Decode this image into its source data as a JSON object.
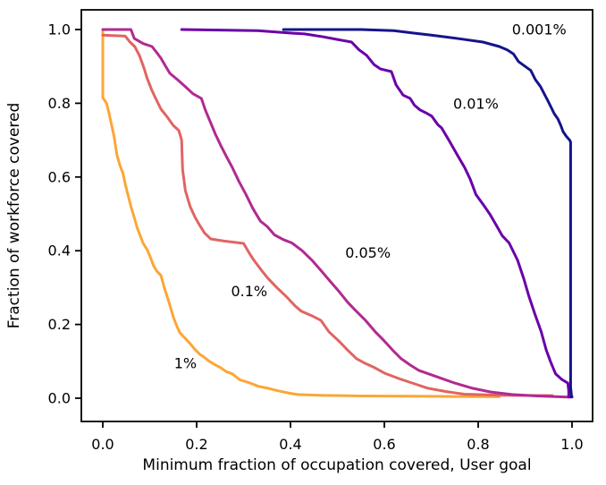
{
  "chart_data": {
    "type": "line",
    "title": "",
    "xlabel": "Minimum fraction of occupation covered, User goal",
    "ylabel": "Fraction of workforce covered",
    "xlim": [
      -0.05,
      1.05
    ],
    "ylim": [
      -0.05,
      1.05
    ],
    "grid": false,
    "legend_position": "inline-annotations",
    "x_ticks": [
      0.0,
      0.2,
      0.4,
      0.6,
      0.8,
      1.0
    ],
    "y_ticks": [
      0.0,
      0.2,
      0.4,
      0.6,
      0.8,
      1.0
    ],
    "x_tick_labels": [
      "0.0",
      "0.2",
      "0.4",
      "0.6",
      "0.8",
      "1.0"
    ],
    "y_tick_labels": [
      "0.0",
      "0.2",
      "0.4",
      "0.6",
      "0.8",
      "1.0"
    ],
    "series": [
      {
        "name": "1%",
        "color": "#fca636",
        "points": [
          [
            0,
            1
          ],
          [
            0,
            0.815
          ],
          [
            0.008,
            0.8
          ],
          [
            0.013,
            0.775
          ],
          [
            0.018,
            0.745
          ],
          [
            0.024,
            0.71
          ],
          [
            0.03,
            0.66
          ],
          [
            0.037,
            0.63
          ],
          [
            0.043,
            0.61
          ],
          [
            0.048,
            0.58
          ],
          [
            0.053,
            0.555
          ],
          [
            0.06,
            0.52
          ],
          [
            0.067,
            0.49
          ],
          [
            0.074,
            0.46
          ],
          [
            0.08,
            0.44
          ],
          [
            0.086,
            0.42
          ],
          [
            0.095,
            0.402
          ],
          [
            0.102,
            0.38
          ],
          [
            0.108,
            0.36
          ],
          [
            0.115,
            0.345
          ],
          [
            0.124,
            0.333
          ],
          [
            0.131,
            0.3
          ],
          [
            0.137,
            0.277
          ],
          [
            0.144,
            0.248
          ],
          [
            0.15,
            0.221
          ],
          [
            0.157,
            0.198
          ],
          [
            0.164,
            0.178
          ],
          [
            0.175,
            0.163
          ],
          [
            0.186,
            0.148
          ],
          [
            0.196,
            0.133
          ],
          [
            0.206,
            0.12
          ],
          [
            0.213,
            0.114
          ],
          [
            0.227,
            0.1
          ],
          [
            0.24,
            0.09
          ],
          [
            0.251,
            0.083
          ],
          [
            0.263,
            0.072
          ],
          [
            0.276,
            0.066
          ],
          [
            0.292,
            0.05
          ],
          [
            0.314,
            0.041
          ],
          [
            0.332,
            0.032
          ],
          [
            0.352,
            0.027
          ],
          [
            0.374,
            0.02
          ],
          [
            0.4,
            0.013
          ],
          [
            0.415,
            0.01
          ],
          [
            0.46,
            0.008
          ],
          [
            0.55,
            0.006
          ],
          [
            0.7,
            0.005
          ],
          [
            0.845,
            0.004
          ]
        ]
      },
      {
        "name": "0.1%",
        "color": "#e16462",
        "points": [
          [
            0,
            0.985
          ],
          [
            0.048,
            0.982
          ],
          [
            0.058,
            0.966
          ],
          [
            0.068,
            0.954
          ],
          [
            0.078,
            0.93
          ],
          [
            0.088,
            0.895
          ],
          [
            0.094,
            0.87
          ],
          [
            0.104,
            0.837
          ],
          [
            0.114,
            0.81
          ],
          [
            0.124,
            0.784
          ],
          [
            0.138,
            0.762
          ],
          [
            0.15,
            0.74
          ],
          [
            0.162,
            0.726
          ],
          [
            0.168,
            0.7
          ],
          [
            0.17,
            0.62
          ],
          [
            0.176,
            0.563
          ],
          [
            0.186,
            0.52
          ],
          [
            0.197,
            0.49
          ],
          [
            0.207,
            0.468
          ],
          [
            0.217,
            0.448
          ],
          [
            0.23,
            0.432
          ],
          [
            0.26,
            0.426
          ],
          [
            0.3,
            0.42
          ],
          [
            0.313,
            0.392
          ],
          [
            0.322,
            0.374
          ],
          [
            0.34,
            0.344
          ],
          [
            0.352,
            0.325
          ],
          [
            0.371,
            0.3
          ],
          [
            0.39,
            0.277
          ],
          [
            0.41,
            0.25
          ],
          [
            0.423,
            0.236
          ],
          [
            0.445,
            0.224
          ],
          [
            0.465,
            0.211
          ],
          [
            0.482,
            0.18
          ],
          [
            0.503,
            0.155
          ],
          [
            0.522,
            0.13
          ],
          [
            0.541,
            0.107
          ],
          [
            0.56,
            0.094
          ],
          [
            0.579,
            0.083
          ],
          [
            0.602,
            0.067
          ],
          [
            0.636,
            0.051
          ],
          [
            0.662,
            0.04
          ],
          [
            0.693,
            0.027
          ],
          [
            0.732,
            0.018
          ],
          [
            0.77,
            0.011
          ],
          [
            0.85,
            0.008
          ],
          [
            0.958,
            0.007
          ]
        ]
      },
      {
        "name": "0.05%",
        "color": "#b12a90",
        "points": [
          [
            0,
            1
          ],
          [
            0.06,
            1
          ],
          [
            0.067,
            0.976
          ],
          [
            0.086,
            0.962
          ],
          [
            0.105,
            0.954
          ],
          [
            0.116,
            0.936
          ],
          [
            0.124,
            0.922
          ],
          [
            0.134,
            0.9
          ],
          [
            0.143,
            0.881
          ],
          [
            0.16,
            0.863
          ],
          [
            0.176,
            0.845
          ],
          [
            0.192,
            0.826
          ],
          [
            0.21,
            0.813
          ],
          [
            0.219,
            0.78
          ],
          [
            0.229,
            0.75
          ],
          [
            0.24,
            0.716
          ],
          [
            0.252,
            0.684
          ],
          [
            0.265,
            0.652
          ],
          [
            0.276,
            0.626
          ],
          [
            0.29,
            0.588
          ],
          [
            0.305,
            0.553
          ],
          [
            0.32,
            0.514
          ],
          [
            0.336,
            0.48
          ],
          [
            0.35,
            0.466
          ],
          [
            0.366,
            0.443
          ],
          [
            0.385,
            0.43
          ],
          [
            0.403,
            0.421
          ],
          [
            0.425,
            0.4
          ],
          [
            0.446,
            0.374
          ],
          [
            0.466,
            0.345
          ],
          [
            0.484,
            0.318
          ],
          [
            0.503,
            0.29
          ],
          [
            0.522,
            0.26
          ],
          [
            0.541,
            0.235
          ],
          [
            0.56,
            0.211
          ],
          [
            0.58,
            0.181
          ],
          [
            0.6,
            0.155
          ],
          [
            0.618,
            0.13
          ],
          [
            0.636,
            0.107
          ],
          [
            0.655,
            0.09
          ],
          [
            0.674,
            0.075
          ],
          [
            0.712,
            0.058
          ],
          [
            0.75,
            0.041
          ],
          [
            0.788,
            0.027
          ],
          [
            0.826,
            0.017
          ],
          [
            0.872,
            0.01
          ],
          [
            0.925,
            0.006
          ],
          [
            0.996,
            0.003
          ],
          [
            1,
            0.003
          ]
        ]
      },
      {
        "name": "0.01%",
        "color": "#6a00a8",
        "points": [
          [
            0.168,
            1
          ],
          [
            0.33,
            0.997
          ],
          [
            0.405,
            0.99
          ],
          [
            0.43,
            0.988
          ],
          [
            0.47,
            0.98
          ],
          [
            0.5,
            0.973
          ],
          [
            0.53,
            0.966
          ],
          [
            0.546,
            0.945
          ],
          [
            0.562,
            0.93
          ],
          [
            0.578,
            0.905
          ],
          [
            0.592,
            0.893
          ],
          [
            0.615,
            0.886
          ],
          [
            0.625,
            0.85
          ],
          [
            0.64,
            0.822
          ],
          [
            0.655,
            0.813
          ],
          [
            0.664,
            0.795
          ],
          [
            0.676,
            0.782
          ],
          [
            0.69,
            0.773
          ],
          [
            0.701,
            0.765
          ],
          [
            0.714,
            0.742
          ],
          [
            0.722,
            0.733
          ],
          [
            0.738,
            0.699
          ],
          [
            0.755,
            0.661
          ],
          [
            0.771,
            0.626
          ],
          [
            0.783,
            0.594
          ],
          [
            0.795,
            0.553
          ],
          [
            0.813,
            0.521
          ],
          [
            0.826,
            0.497
          ],
          [
            0.84,
            0.466
          ],
          [
            0.851,
            0.441
          ],
          [
            0.866,
            0.421
          ],
          [
            0.884,
            0.374
          ],
          [
            0.897,
            0.325
          ],
          [
            0.908,
            0.277
          ],
          [
            0.921,
            0.228
          ],
          [
            0.934,
            0.181
          ],
          [
            0.945,
            0.131
          ],
          [
            0.954,
            0.1
          ],
          [
            0.965,
            0.066
          ],
          [
            0.978,
            0.051
          ],
          [
            0.991,
            0.041
          ],
          [
            0.993,
            0.02
          ],
          [
            0.993,
            0.004
          ],
          [
            1,
            0.004
          ]
        ]
      },
      {
        "name": "0.001%",
        "color": "#14148c",
        "points": [
          [
            0.385,
            1
          ],
          [
            0.55,
            1
          ],
          [
            0.62,
            0.997
          ],
          [
            0.665,
            0.99
          ],
          [
            0.7,
            0.985
          ],
          [
            0.76,
            0.975
          ],
          [
            0.81,
            0.966
          ],
          [
            0.845,
            0.954
          ],
          [
            0.862,
            0.945
          ],
          [
            0.875,
            0.934
          ],
          [
            0.886,
            0.913
          ],
          [
            0.9,
            0.9
          ],
          [
            0.912,
            0.889
          ],
          [
            0.922,
            0.864
          ],
          [
            0.933,
            0.845
          ],
          [
            0.941,
            0.825
          ],
          [
            0.948,
            0.808
          ],
          [
            0.955,
            0.79
          ],
          [
            0.962,
            0.772
          ],
          [
            0.97,
            0.757
          ],
          [
            0.976,
            0.74
          ],
          [
            0.981,
            0.723
          ],
          [
            0.988,
            0.71
          ],
          [
            0.995,
            0.7
          ],
          [
            0.997,
            0.695
          ],
          [
            0.997,
            0.03
          ],
          [
            0.999,
            0.004
          ]
        ]
      }
    ],
    "annotations": [
      {
        "text": "0.001%",
        "x": 0.93,
        "y": 1.0,
        "color": "#14148c"
      },
      {
        "text": "0.01%",
        "x": 0.795,
        "y": 0.798,
        "color": "#6a00a8"
      },
      {
        "text": "0.05%",
        "x": 0.565,
        "y": 0.395,
        "color": "#b12a90"
      },
      {
        "text": "0.1%",
        "x": 0.312,
        "y": 0.29,
        "color": "#e16462"
      },
      {
        "text": "1%",
        "x": 0.176,
        "y": 0.095,
        "color": "#fca636"
      }
    ]
  }
}
